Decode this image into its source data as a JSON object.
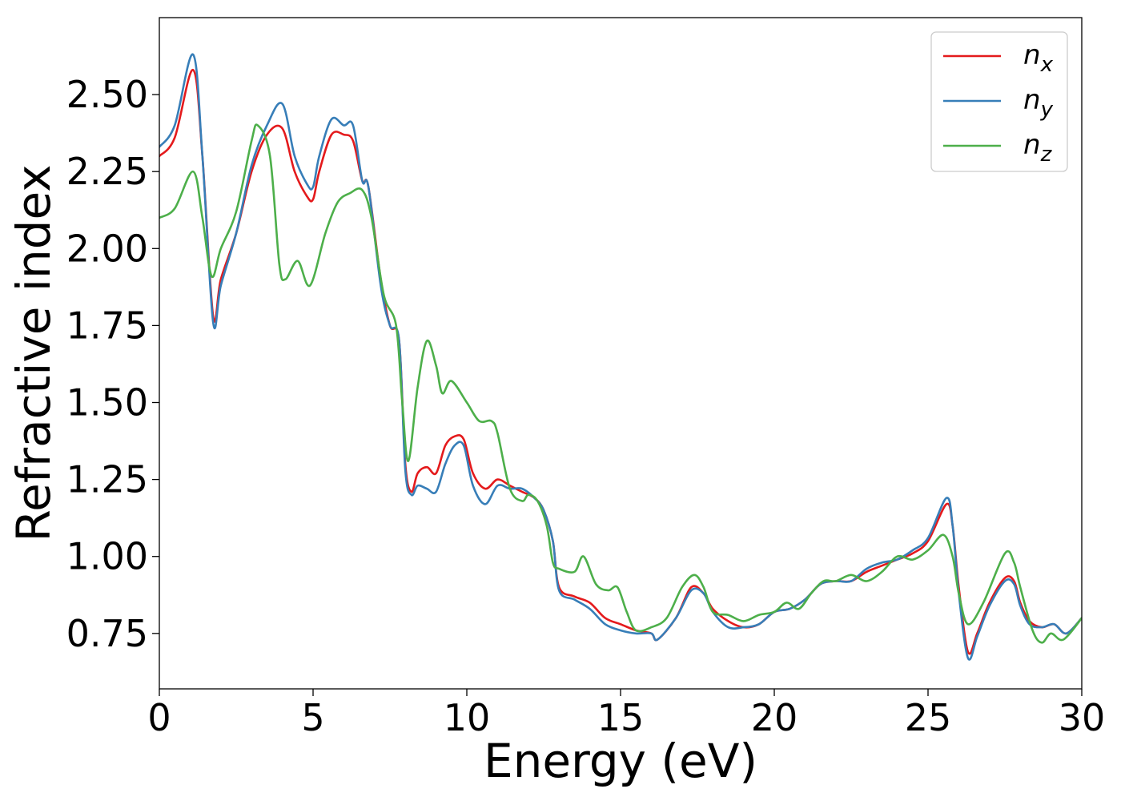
{
  "chart_data": {
    "type": "line",
    "xlabel": "Energy (eV)",
    "ylabel": "Refractive index",
    "xlim": [
      0,
      30
    ],
    "ylim": [
      0.57,
      2.75
    ],
    "xticks": [
      0,
      5,
      10,
      15,
      20,
      25,
      30
    ],
    "xtick_labels": [
      "0",
      "5",
      "10",
      "15",
      "20",
      "25",
      "30"
    ],
    "yticks": [
      0.75,
      1.0,
      1.25,
      1.5,
      1.75,
      2.0,
      2.25,
      2.5
    ],
    "ytick_labels": [
      "0.75",
      "1.00",
      "1.25",
      "1.50",
      "1.75",
      "2.00",
      "2.25",
      "2.50"
    ],
    "grid": false,
    "legend_position": "top-right",
    "series": [
      {
        "name": "n_x",
        "legend_base": "n",
        "legend_sub": "x",
        "color": "#e41a1c",
        "points": [
          [
            0,
            2.3
          ],
          [
            0.5,
            2.36
          ],
          [
            1.1,
            2.58
          ],
          [
            1.4,
            2.3
          ],
          [
            1.75,
            1.78
          ],
          [
            2.0,
            1.9
          ],
          [
            2.5,
            2.05
          ],
          [
            3.0,
            2.25
          ],
          [
            3.5,
            2.37
          ],
          [
            4.0,
            2.39
          ],
          [
            4.4,
            2.25
          ],
          [
            4.8,
            2.17
          ],
          [
            5.0,
            2.16
          ],
          [
            5.2,
            2.25
          ],
          [
            5.6,
            2.37
          ],
          [
            6.0,
            2.37
          ],
          [
            6.3,
            2.35
          ],
          [
            6.6,
            2.22
          ],
          [
            6.8,
            2.2
          ],
          [
            7.2,
            1.9
          ],
          [
            7.5,
            1.75
          ],
          [
            7.8,
            1.7
          ],
          [
            8.0,
            1.3
          ],
          [
            8.2,
            1.21
          ],
          [
            8.4,
            1.27
          ],
          [
            8.7,
            1.29
          ],
          [
            9.0,
            1.27
          ],
          [
            9.3,
            1.36
          ],
          [
            9.6,
            1.39
          ],
          [
            9.9,
            1.38
          ],
          [
            10.2,
            1.27
          ],
          [
            10.6,
            1.22
          ],
          [
            11.0,
            1.25
          ],
          [
            11.4,
            1.23
          ],
          [
            11.8,
            1.21
          ],
          [
            12.2,
            1.19
          ],
          [
            12.5,
            1.15
          ],
          [
            12.8,
            1.05
          ],
          [
            13.0,
            0.9
          ],
          [
            13.5,
            0.87
          ],
          [
            14.0,
            0.85
          ],
          [
            14.5,
            0.8
          ],
          [
            15.0,
            0.78
          ],
          [
            15.5,
            0.76
          ],
          [
            16.0,
            0.75
          ],
          [
            16.2,
            0.73
          ],
          [
            16.8,
            0.8
          ],
          [
            17.3,
            0.9
          ],
          [
            17.7,
            0.88
          ],
          [
            18.0,
            0.83
          ],
          [
            18.5,
            0.79
          ],
          [
            19.0,
            0.77
          ],
          [
            19.5,
            0.78
          ],
          [
            20.0,
            0.82
          ],
          [
            20.5,
            0.83
          ],
          [
            21.0,
            0.86
          ],
          [
            21.5,
            0.91
          ],
          [
            22.0,
            0.92
          ],
          [
            22.5,
            0.92
          ],
          [
            23.0,
            0.95
          ],
          [
            23.5,
            0.97
          ],
          [
            24.0,
            0.99
          ],
          [
            24.5,
            1.01
          ],
          [
            25.0,
            1.05
          ],
          [
            25.6,
            1.17
          ],
          [
            25.8,
            1.1
          ],
          [
            26.0,
            0.9
          ],
          [
            26.3,
            0.69
          ],
          [
            26.6,
            0.75
          ],
          [
            27.0,
            0.85
          ],
          [
            27.5,
            0.93
          ],
          [
            27.8,
            0.92
          ],
          [
            28.0,
            0.85
          ],
          [
            28.3,
            0.79
          ],
          [
            28.7,
            0.77
          ],
          [
            29.1,
            0.78
          ],
          [
            29.5,
            0.75
          ],
          [
            30.0,
            0.8
          ]
        ]
      },
      {
        "name": "n_y",
        "legend_base": "n",
        "legend_sub": "y",
        "color": "#377eb8",
        "points": [
          [
            0,
            2.33
          ],
          [
            0.5,
            2.4
          ],
          [
            1.1,
            2.63
          ],
          [
            1.4,
            2.3
          ],
          [
            1.75,
            1.76
          ],
          [
            2.0,
            1.88
          ],
          [
            2.5,
            2.05
          ],
          [
            3.0,
            2.27
          ],
          [
            3.5,
            2.4
          ],
          [
            4.0,
            2.47
          ],
          [
            4.4,
            2.3
          ],
          [
            4.8,
            2.21
          ],
          [
            5.0,
            2.2
          ],
          [
            5.2,
            2.3
          ],
          [
            5.6,
            2.42
          ],
          [
            6.0,
            2.4
          ],
          [
            6.3,
            2.4
          ],
          [
            6.6,
            2.22
          ],
          [
            6.8,
            2.2
          ],
          [
            7.2,
            1.88
          ],
          [
            7.5,
            1.75
          ],
          [
            7.8,
            1.7
          ],
          [
            8.0,
            1.28
          ],
          [
            8.2,
            1.2
          ],
          [
            8.4,
            1.23
          ],
          [
            8.7,
            1.22
          ],
          [
            9.0,
            1.21
          ],
          [
            9.3,
            1.3
          ],
          [
            9.6,
            1.36
          ],
          [
            9.9,
            1.36
          ],
          [
            10.2,
            1.23
          ],
          [
            10.6,
            1.17
          ],
          [
            11.0,
            1.23
          ],
          [
            11.4,
            1.22
          ],
          [
            11.8,
            1.22
          ],
          [
            12.2,
            1.19
          ],
          [
            12.5,
            1.15
          ],
          [
            12.8,
            1.05
          ],
          [
            13.0,
            0.89
          ],
          [
            13.5,
            0.86
          ],
          [
            14.0,
            0.83
          ],
          [
            14.5,
            0.78
          ],
          [
            15.0,
            0.76
          ],
          [
            15.5,
            0.75
          ],
          [
            16.0,
            0.75
          ],
          [
            16.2,
            0.73
          ],
          [
            16.8,
            0.8
          ],
          [
            17.3,
            0.89
          ],
          [
            17.7,
            0.88
          ],
          [
            18.0,
            0.82
          ],
          [
            18.5,
            0.77
          ],
          [
            19.0,
            0.77
          ],
          [
            19.5,
            0.78
          ],
          [
            20.0,
            0.82
          ],
          [
            20.5,
            0.83
          ],
          [
            21.0,
            0.86
          ],
          [
            21.5,
            0.91
          ],
          [
            22.0,
            0.92
          ],
          [
            22.5,
            0.92
          ],
          [
            23.0,
            0.96
          ],
          [
            23.5,
            0.98
          ],
          [
            24.0,
            0.99
          ],
          [
            24.5,
            1.02
          ],
          [
            25.0,
            1.06
          ],
          [
            25.6,
            1.19
          ],
          [
            25.8,
            1.1
          ],
          [
            26.0,
            0.88
          ],
          [
            26.3,
            0.67
          ],
          [
            26.6,
            0.74
          ],
          [
            27.0,
            0.84
          ],
          [
            27.5,
            0.92
          ],
          [
            27.8,
            0.91
          ],
          [
            28.0,
            0.84
          ],
          [
            28.3,
            0.78
          ],
          [
            28.7,
            0.77
          ],
          [
            29.1,
            0.78
          ],
          [
            29.5,
            0.75
          ],
          [
            30.0,
            0.8
          ]
        ]
      },
      {
        "name": "n_z",
        "legend_base": "n",
        "legend_sub": "z",
        "color": "#4daf4a",
        "points": [
          [
            0,
            2.1
          ],
          [
            0.5,
            2.13
          ],
          [
            1.1,
            2.25
          ],
          [
            1.4,
            2.1
          ],
          [
            1.7,
            1.91
          ],
          [
            2.0,
            2.0
          ],
          [
            2.5,
            2.12
          ],
          [
            3.0,
            2.35
          ],
          [
            3.2,
            2.4
          ],
          [
            3.6,
            2.3
          ],
          [
            3.9,
            1.95
          ],
          [
            4.1,
            1.9
          ],
          [
            4.5,
            1.96
          ],
          [
            4.9,
            1.88
          ],
          [
            5.4,
            2.05
          ],
          [
            5.8,
            2.15
          ],
          [
            6.2,
            2.18
          ],
          [
            6.6,
            2.19
          ],
          [
            6.9,
            2.1
          ],
          [
            7.3,
            1.85
          ],
          [
            7.7,
            1.75
          ],
          [
            7.9,
            1.5
          ],
          [
            8.1,
            1.31
          ],
          [
            8.4,
            1.55
          ],
          [
            8.7,
            1.7
          ],
          [
            9.0,
            1.62
          ],
          [
            9.2,
            1.53
          ],
          [
            9.5,
            1.57
          ],
          [
            10.0,
            1.5
          ],
          [
            10.4,
            1.44
          ],
          [
            10.8,
            1.44
          ],
          [
            11.0,
            1.4
          ],
          [
            11.4,
            1.22
          ],
          [
            11.8,
            1.18
          ],
          [
            12.0,
            1.2
          ],
          [
            12.3,
            1.18
          ],
          [
            12.6,
            1.1
          ],
          [
            12.8,
            0.98
          ],
          [
            13.0,
            0.96
          ],
          [
            13.5,
            0.95
          ],
          [
            13.8,
            1.0
          ],
          [
            14.2,
            0.91
          ],
          [
            14.6,
            0.89
          ],
          [
            14.9,
            0.9
          ],
          [
            15.2,
            0.82
          ],
          [
            15.5,
            0.76
          ],
          [
            16.0,
            0.77
          ],
          [
            16.5,
            0.8
          ],
          [
            17.0,
            0.9
          ],
          [
            17.4,
            0.94
          ],
          [
            17.7,
            0.9
          ],
          [
            18.0,
            0.82
          ],
          [
            18.5,
            0.81
          ],
          [
            19.0,
            0.79
          ],
          [
            19.5,
            0.81
          ],
          [
            20.0,
            0.82
          ],
          [
            20.4,
            0.85
          ],
          [
            20.8,
            0.83
          ],
          [
            21.2,
            0.88
          ],
          [
            21.6,
            0.92
          ],
          [
            22.0,
            0.92
          ],
          [
            22.5,
            0.94
          ],
          [
            23.0,
            0.92
          ],
          [
            23.5,
            0.95
          ],
          [
            24.0,
            1.0
          ],
          [
            24.5,
            0.99
          ],
          [
            25.0,
            1.02
          ],
          [
            25.5,
            1.07
          ],
          [
            25.8,
            1.0
          ],
          [
            26.0,
            0.88
          ],
          [
            26.3,
            0.78
          ],
          [
            26.8,
            0.85
          ],
          [
            27.5,
            1.01
          ],
          [
            27.8,
            0.98
          ],
          [
            28.0,
            0.9
          ],
          [
            28.4,
            0.76
          ],
          [
            28.7,
            0.72
          ],
          [
            29.0,
            0.75
          ],
          [
            29.4,
            0.73
          ],
          [
            30.0,
            0.8
          ]
        ]
      }
    ]
  }
}
